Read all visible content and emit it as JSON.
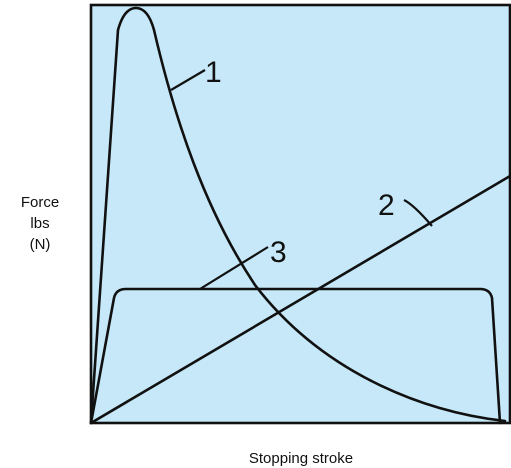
{
  "y_label": [
    "Force",
    "lbs",
    "(N)"
  ],
  "x_label": "Stopping stroke",
  "curves": [
    {
      "label": "1"
    },
    {
      "label": "2"
    },
    {
      "label": "3"
    }
  ]
}
